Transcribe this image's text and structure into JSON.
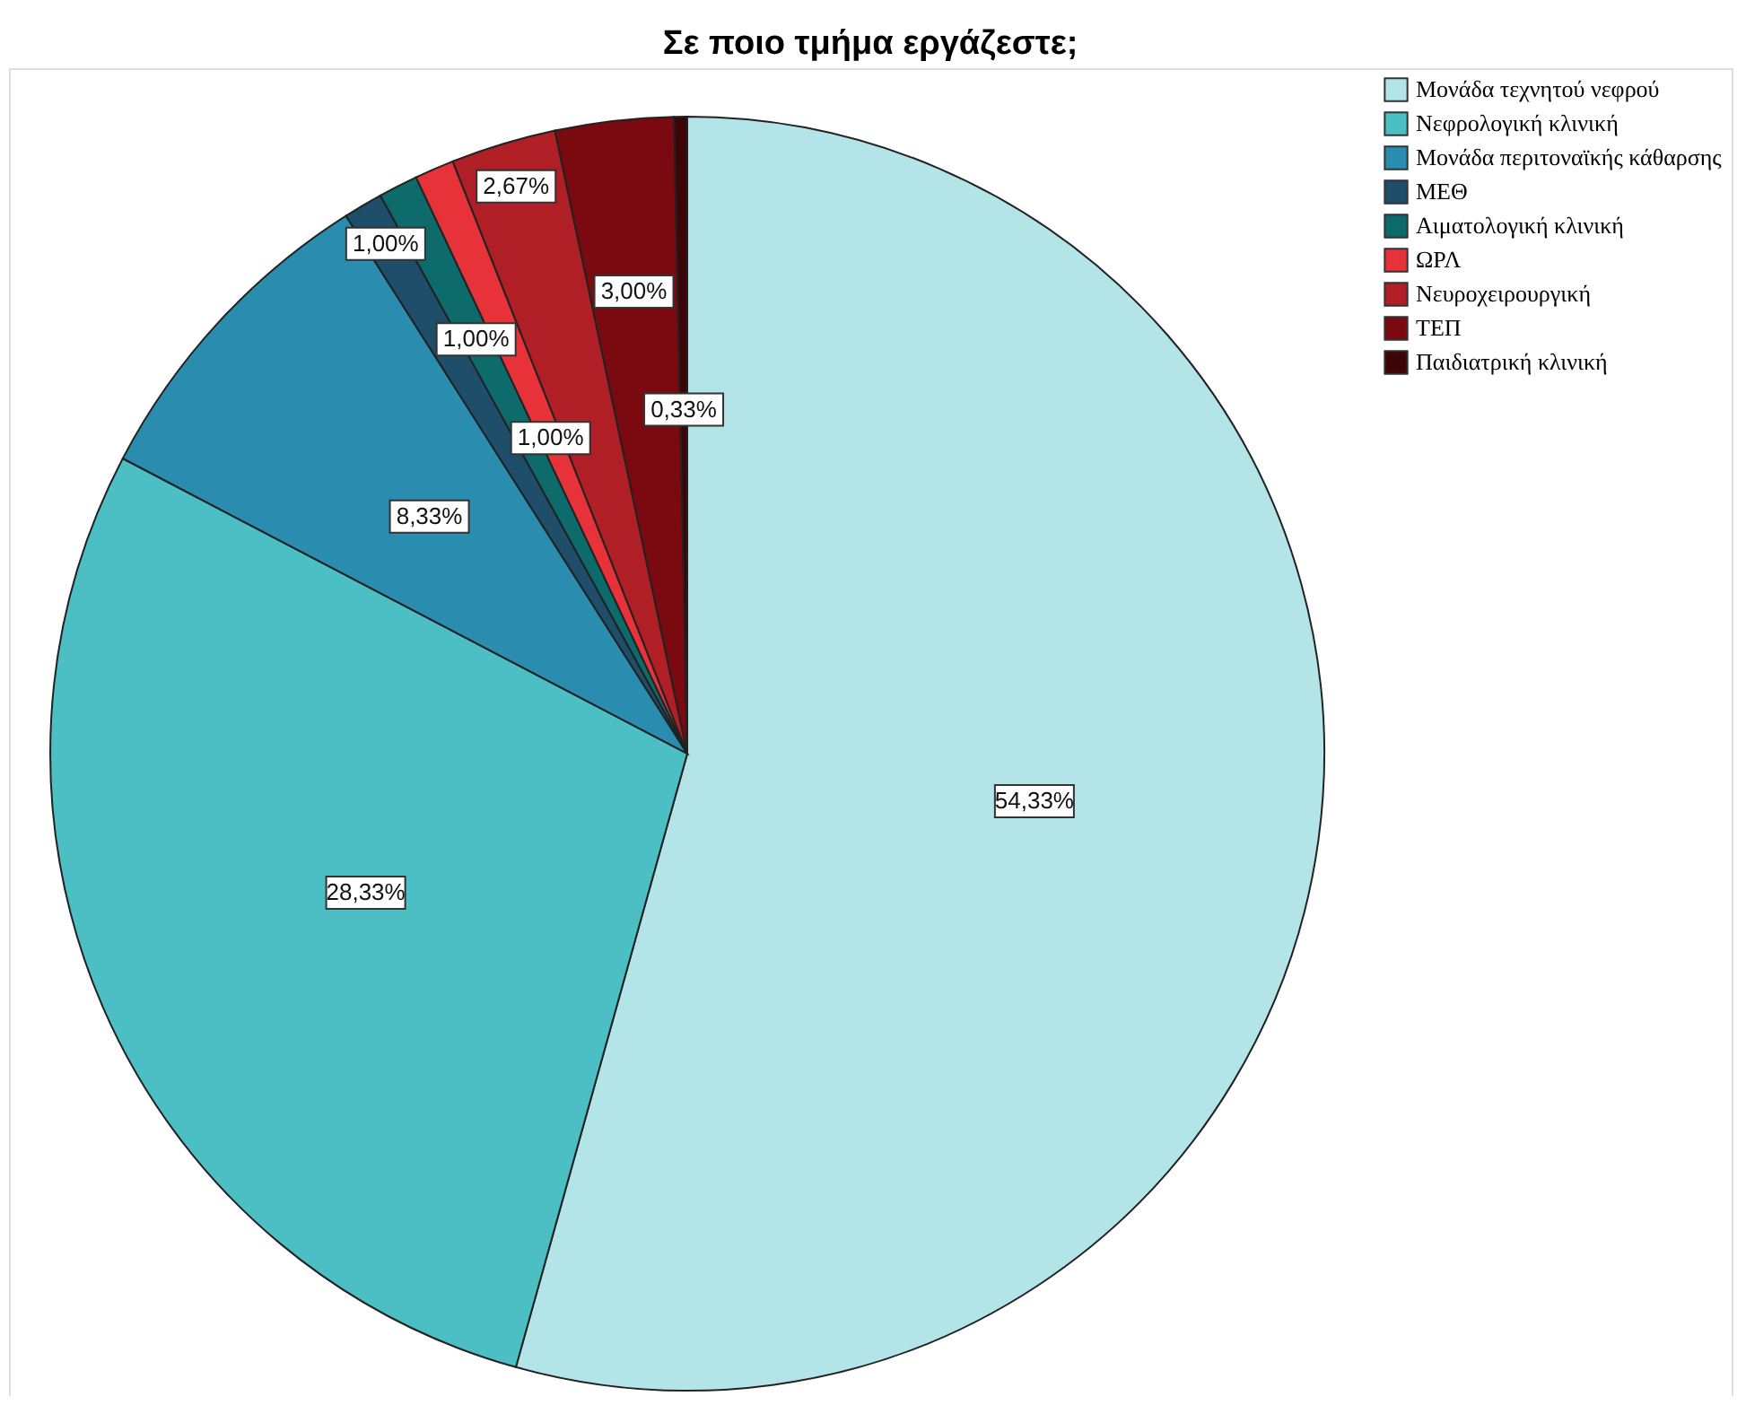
{
  "chart_data": {
    "type": "pie",
    "title": "Σε ποιο τμήμα εργάζεστε;",
    "categories": [
      "Μονάδα τεχνητού νεφρού",
      "Νεφρολογική κλινική",
      "Μονάδα περιτοναϊκής κάθαρσης",
      "ΜΕΘ",
      "Αιματολογική κλινική",
      "ΩΡΛ",
      "Νευροχειρουργική",
      "ΤΕΠ",
      "Παιδιατρική κλινική"
    ],
    "values": [
      54.33,
      28.33,
      8.33,
      1.0,
      1.0,
      1.0,
      2.67,
      3.0,
      0.33
    ],
    "value_labels": [
      "54,33%",
      "28,33%",
      "8,33%",
      "1,00%",
      "1,00%",
      "1,00%",
      "2,67%",
      "3,00%",
      "0,33%"
    ],
    "colors": [
      "#b3e5e8",
      "#4bbfc4",
      "#2a8caf",
      "#1f4e6b",
      "#0e6b6b",
      "#e8323a",
      "#b01e26",
      "#7a0a0f",
      "#3d0508"
    ],
    "legend": "top right"
  }
}
